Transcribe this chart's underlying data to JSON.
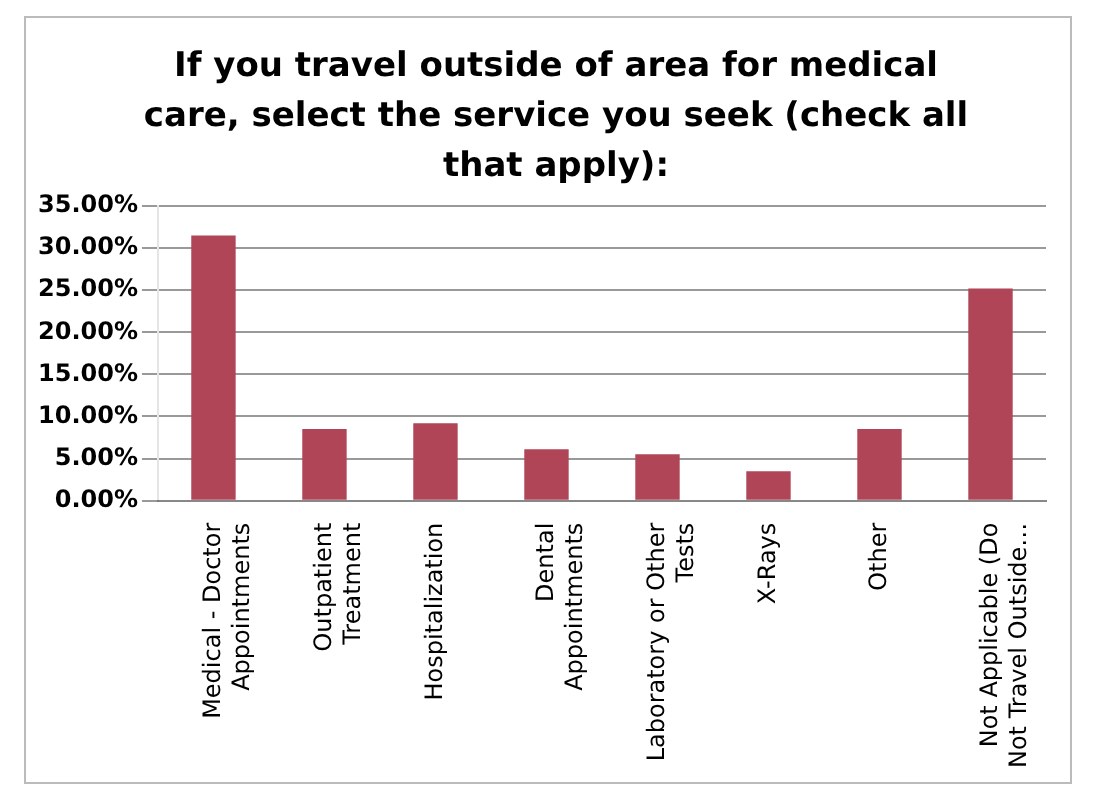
{
  "chart_data": {
    "type": "bar",
    "title": "If you travel outside of area for medical care, select the service you seek (check all that apply):",
    "categories": [
      "Medical - Doctor\nAppointments",
      "Outpatient\nTreatment",
      "Hospitalization",
      "Dental\nAppointments",
      "Laboratory or Other\nTests",
      "X-Rays",
      "Other",
      "Not Applicable (Do\nNot Travel Outside…"
    ],
    "values": [
      31.5,
      8.5,
      9.2,
      6.1,
      5.5,
      3.5,
      8.5,
      25.2
    ],
    "color": "#b04558",
    "ylim": [
      0,
      35
    ],
    "yticks": [
      {
        "value": 0,
        "label": "0.00%"
      },
      {
        "value": 5,
        "label": "5.00%"
      },
      {
        "value": 10,
        "label": "10.00%"
      },
      {
        "value": 15,
        "label": "15.00%"
      },
      {
        "value": 20,
        "label": "20.00%"
      },
      {
        "value": 25,
        "label": "25.00%"
      },
      {
        "value": 30,
        "label": "30.00%"
      },
      {
        "value": 35,
        "label": "35.00%"
      }
    ],
    "grid": "y",
    "legend": false
  }
}
